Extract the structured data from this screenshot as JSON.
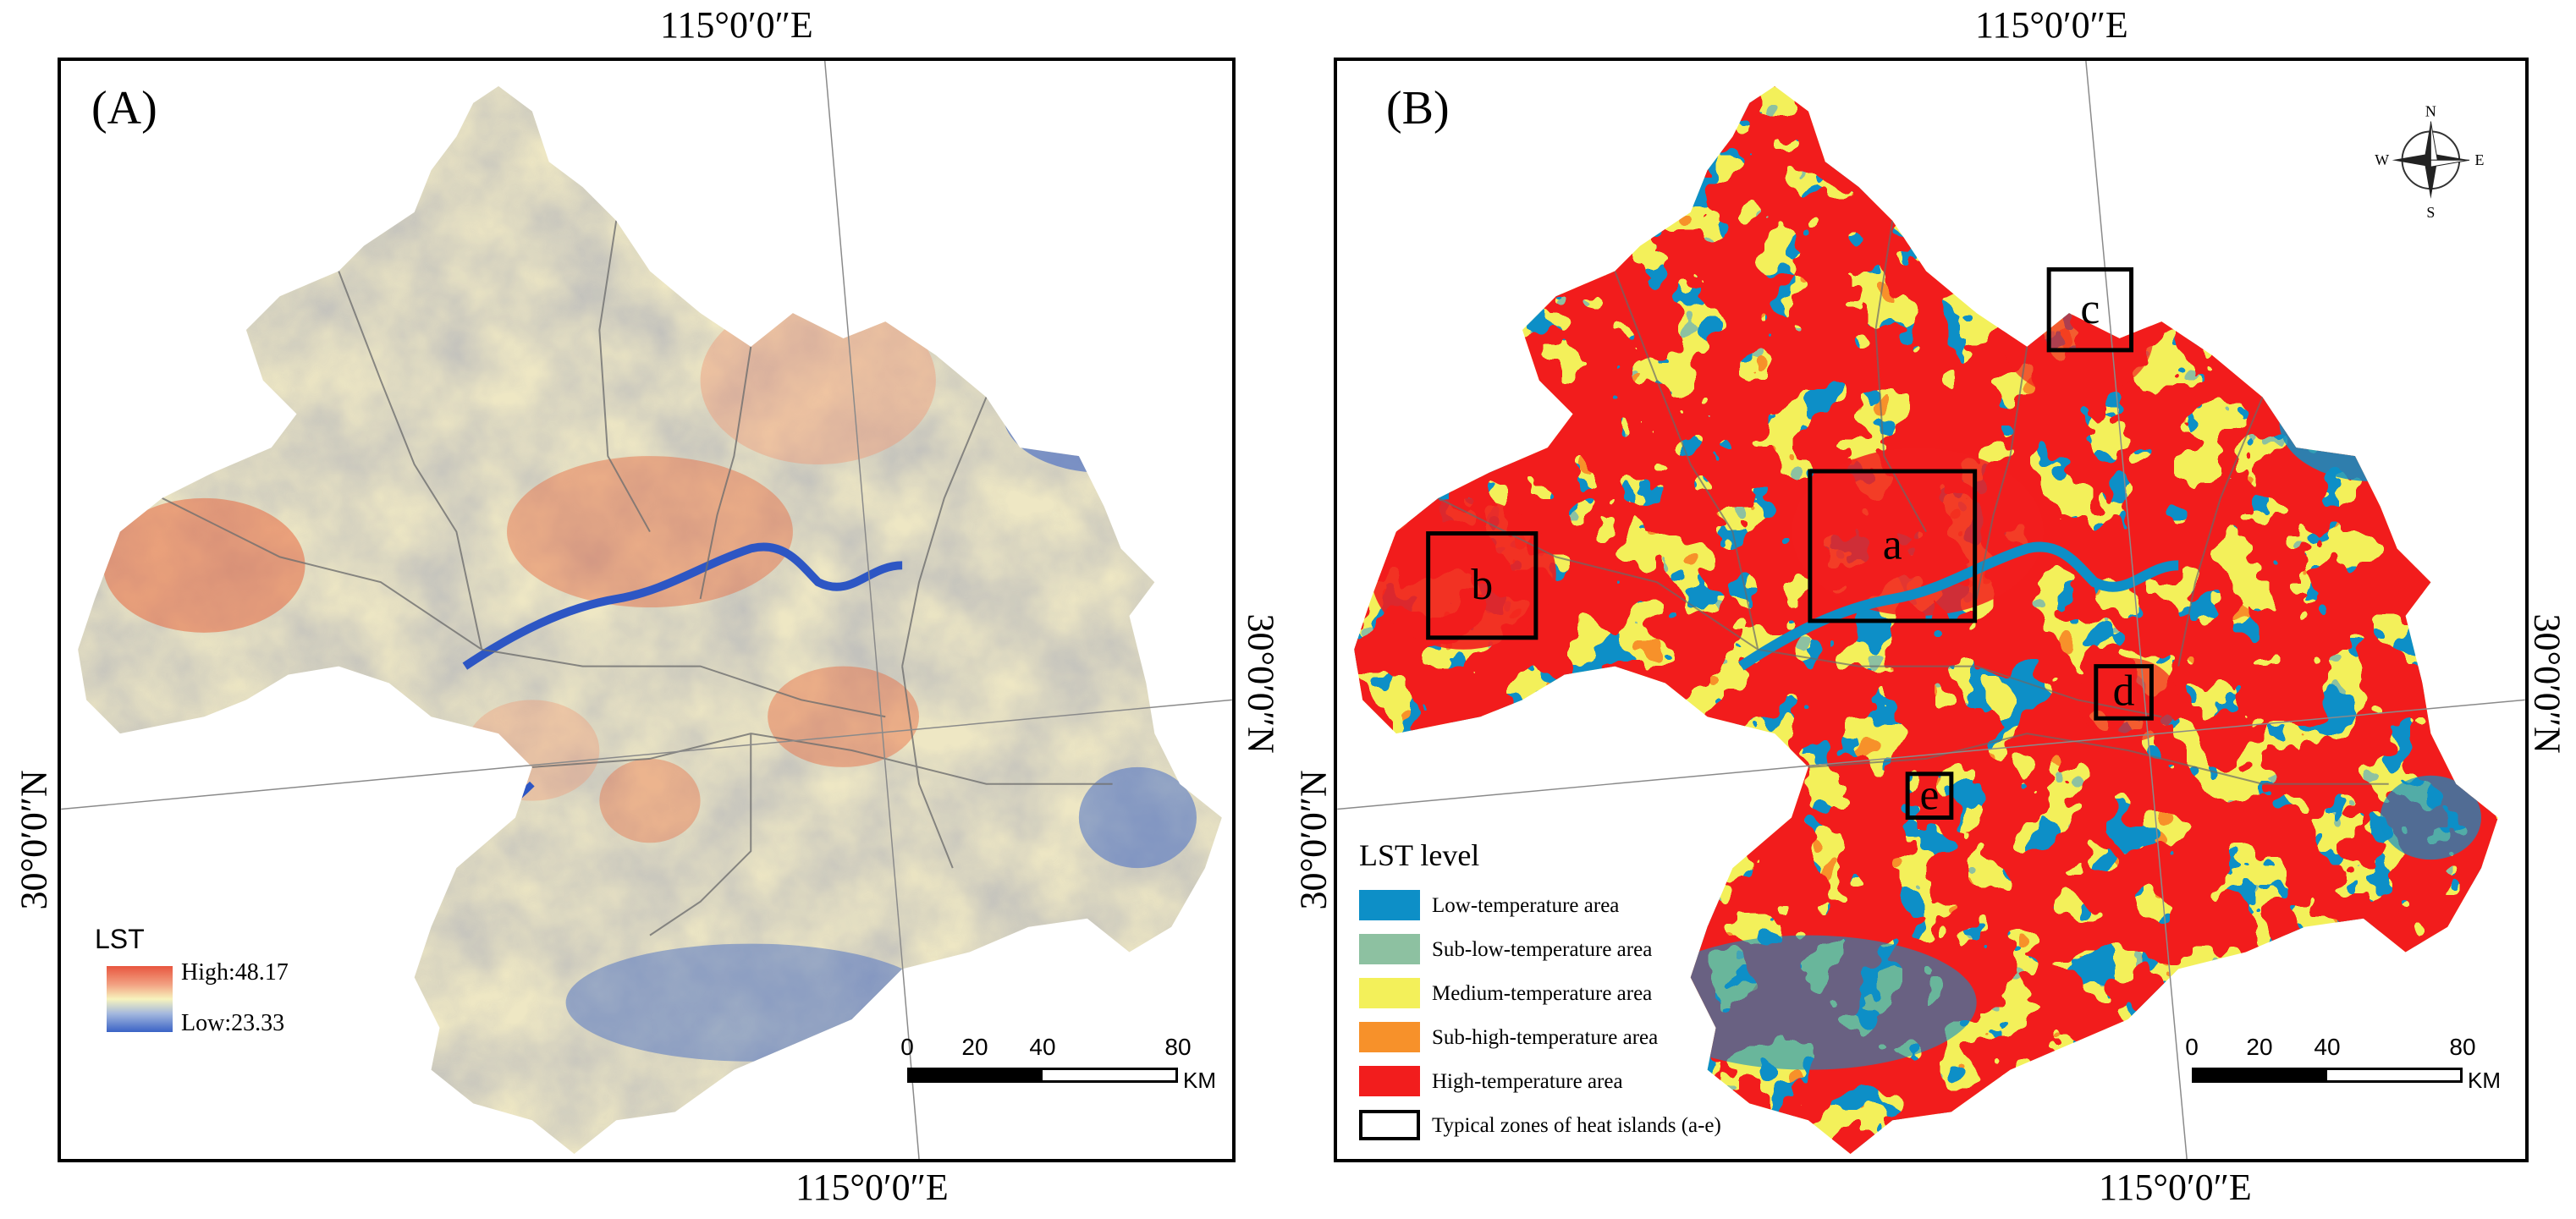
{
  "panel_a": {
    "label": "(A)",
    "coords": {
      "top": "115°0′0″E",
      "bottom": "115°0′0″E",
      "left": "30°0′0″N",
      "right": "30°0′0″N"
    },
    "legend": {
      "title": "LST",
      "high": "High:48.17",
      "low": "Low:23.33"
    },
    "scale": {
      "ticks": [
        "0",
        "20",
        "40",
        "80"
      ],
      "unit": "KM"
    }
  },
  "panel_b": {
    "label": "(B)",
    "coords": {
      "top": "115°0′0″E",
      "bottom": "115°0′0″E",
      "left": "30°0′0″N",
      "right": "30°0′0″N"
    },
    "compass": {
      "n": "N",
      "s": "S",
      "e": "E",
      "w": "W"
    },
    "legend": {
      "title": "LST level",
      "items": [
        {
          "label": "Low-temperature area",
          "color": "#0d8fc7"
        },
        {
          "label": "Sub-low-temperature area",
          "color": "#8dc1a1"
        },
        {
          "label": "Medium-temperature area",
          "color": "#f3f05a"
        },
        {
          "label": "Sub-high-temperature area",
          "color": "#f7912a"
        },
        {
          "label": "High-temperature area",
          "color": "#f21d1d"
        },
        {
          "label": "Typical zones of heat islands (a-e)",
          "color": "#ffffff"
        }
      ]
    },
    "zones": [
      "a",
      "b",
      "c",
      "d",
      "e"
    ],
    "scale": {
      "ticks": [
        "0",
        "20",
        "40",
        "80"
      ],
      "unit": "KM"
    }
  }
}
